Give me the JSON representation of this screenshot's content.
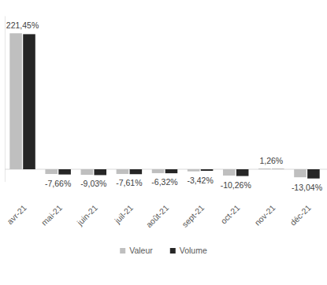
{
  "chart_data": {
    "type": "bar",
    "categories": [
      "avr-21",
      "mai-21",
      "juin-21",
      "juil-21",
      "août-21",
      "sept-21",
      "oct-21",
      "nov-21",
      "déc-21"
    ],
    "series": [
      {
        "name": "Valeur",
        "color": "#bfbfbf",
        "values": [
          221.45,
          -7.66,
          -9.03,
          -7.61,
          -6.32,
          -3.42,
          -10.26,
          1.26,
          -13.04
        ],
        "value_labels": [
          "221,45%",
          "-7,66%",
          "-9,03%",
          "-7,61%",
          "-6,32%",
          "-3,42%",
          "-10,26%",
          "1,26%",
          "-13,04%"
        ]
      },
      {
        "name": "Volume",
        "color": "#262626",
        "values": [
          220,
          -8.5,
          -9.5,
          -8,
          -6.5,
          -2.5,
          -11,
          0.3,
          -15
        ]
      }
    ],
    "ylim": [
      -20,
      250
    ],
    "data_labels": true,
    "tick_labels": "x",
    "legend": "bottom"
  }
}
